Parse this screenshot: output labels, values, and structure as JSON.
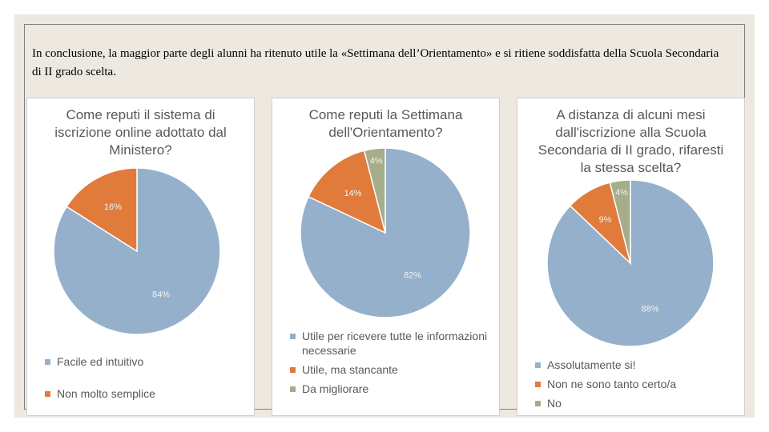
{
  "text": "In conclusione, la maggior parte degli alunni ha ritenuto utile la «Settimana dell’Orientamento» e si ritiene soddisfatta della Scuola Secondaria di II grado scelta.",
  "chart_data": [
    {
      "type": "pie",
      "title": "Come reputi il sistema di iscrizione online adottato dal Ministero?",
      "categories": [
        "Facile ed intuitivo",
        "Non molto semplice"
      ],
      "values": [
        84,
        16
      ],
      "value_labels": [
        "84%",
        "16%"
      ],
      "colors": [
        "#95b0cb",
        "#e07b3c"
      ]
    },
    {
      "type": "pie",
      "title": "Come reputi la Settimana dell'Orientamento?",
      "categories": [
        "Utile per ricevere tutte le informazioni necessarie",
        "Utile, ma stancante",
        "Da migliorare"
      ],
      "values": [
        82,
        14,
        4
      ],
      "value_labels": [
        "82%",
        "14%",
        "4%"
      ],
      "colors": [
        "#95b0cb",
        "#e07b3c",
        "#a5ad8a"
      ]
    },
    {
      "type": "pie",
      "title": "A distanza di alcuni mesi dall'iscrizione alla Scuola Secondaria di II grado, rifaresti la stessa scelta?",
      "categories": [
        "Assolutamente si!",
        "Non ne sono tanto certo/a",
        "No"
      ],
      "values": [
        88,
        9,
        4
      ],
      "value_labels": [
        "88%",
        "9%",
        "4%"
      ],
      "colors": [
        "#95b0cb",
        "#e07b3c",
        "#a5ad8a"
      ]
    }
  ]
}
